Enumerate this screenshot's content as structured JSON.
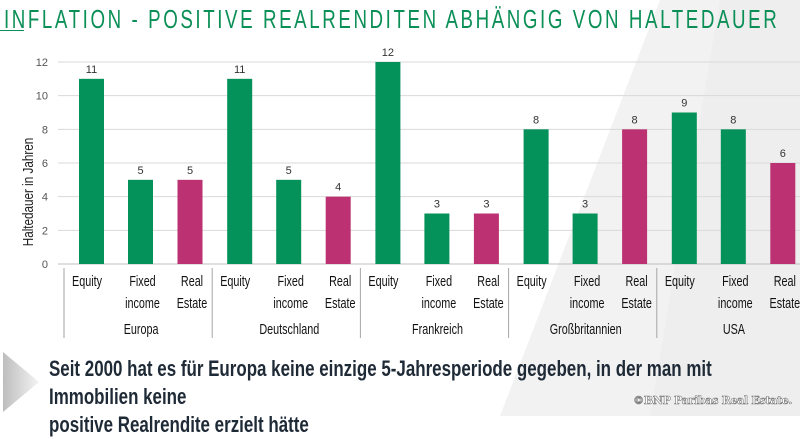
{
  "title": "INFLATION - POSITIVE REALRENDITEN ABHÄNGIG VON HALTEDAUER",
  "footer": {
    "text_line1": "Seit 2000 hat es für Europa keine einzige 5-Jahresperiode gegeben, in der man mit Immobilien keine",
    "text_line2": "positive Realrendite erzielt hätte",
    "copyright": "©BNP Paribas Real Estate."
  },
  "colors": {
    "title": "#0a8f56",
    "green_bar": "#04915a",
    "magenta_bar": "#bb3172",
    "footer_text": "#1f2a37"
  },
  "chart_data": {
    "type": "bar",
    "title": "",
    "ylabel": "Haltedauer in Jahren",
    "xlabel": "",
    "ylim": [
      0,
      12
    ],
    "yticks": [
      0,
      2,
      4,
      6,
      8,
      10,
      12
    ],
    "grid": true,
    "groups": [
      {
        "name": "Europa",
        "bars": [
          {
            "category": "Equity",
            "label_lines": [
              "Equity"
            ],
            "value": 11,
            "color": "green"
          },
          {
            "category": "Fixed income",
            "label_lines": [
              "Fixed",
              "income"
            ],
            "value": 5,
            "color": "green"
          },
          {
            "category": "Real Estate",
            "label_lines": [
              "Real",
              "Estate"
            ],
            "value": 5,
            "color": "magenta"
          }
        ]
      },
      {
        "name": "Deutschland",
        "bars": [
          {
            "category": "Equity",
            "label_lines": [
              "Equity"
            ],
            "value": 11,
            "color": "green"
          },
          {
            "category": "Fixed income",
            "label_lines": [
              "Fixed",
              "income"
            ],
            "value": 5,
            "color": "green"
          },
          {
            "category": "Real Estate",
            "label_lines": [
              "Real",
              "Estate"
            ],
            "value": 4,
            "color": "magenta"
          }
        ]
      },
      {
        "name": "Frankreich",
        "bars": [
          {
            "category": "Equity",
            "label_lines": [
              "Equity"
            ],
            "value": 12,
            "color": "green"
          },
          {
            "category": "Fixed income",
            "label_lines": [
              "Fixed",
              "income"
            ],
            "value": 3,
            "color": "green"
          },
          {
            "category": "Real Estate",
            "label_lines": [
              "Real",
              "Estate"
            ],
            "value": 3,
            "color": "magenta"
          }
        ]
      },
      {
        "name": "Großbritannien",
        "bars": [
          {
            "category": "Equity",
            "label_lines": [
              "Equity"
            ],
            "value": 8,
            "color": "green"
          },
          {
            "category": "Fixed income",
            "label_lines": [
              "Fixed",
              "income"
            ],
            "value": 3,
            "color": "green"
          },
          {
            "category": "Real Estate",
            "label_lines": [
              "Real",
              "Estate"
            ],
            "value": 8,
            "color": "magenta"
          }
        ]
      },
      {
        "name": "USA",
        "bars": [
          {
            "category": "Equity",
            "label_lines": [
              "Equity"
            ],
            "value": 9,
            "color": "green"
          },
          {
            "category": "Fixed income",
            "label_lines": [
              "Fixed",
              "income"
            ],
            "value": 8,
            "color": "green"
          },
          {
            "category": "Real Estate",
            "label_lines": [
              "Real",
              "Estate"
            ],
            "value": 6,
            "color": "magenta"
          }
        ]
      }
    ]
  }
}
